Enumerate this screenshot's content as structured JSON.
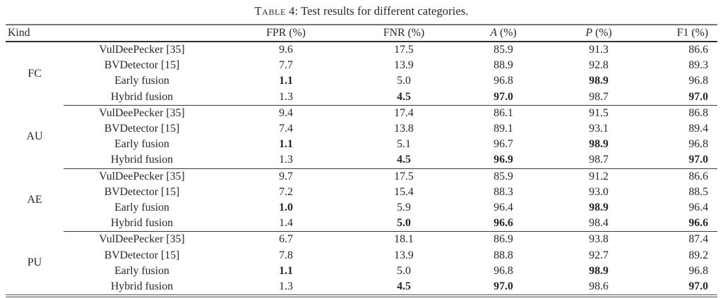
{
  "meta": {
    "background_color": "#ffffff",
    "text_color": "#262626",
    "rule_color": "#4f4f4f"
  },
  "caption": {
    "label": "Table",
    "rest": " 4: Test results for different categories."
  },
  "table": {
    "kind_header": "Kind",
    "columns": [
      {
        "name": "FPR",
        "unit": "(%)",
        "italic": false
      },
      {
        "name": "FNR",
        "unit": "(%)",
        "italic": false
      },
      {
        "name": "A",
        "unit": "(%)",
        "italic": true
      },
      {
        "name": "P",
        "unit": "(%)",
        "italic": true
      },
      {
        "name": "F1",
        "unit": "(%)",
        "italic": false
      }
    ],
    "groups": [
      {
        "kind": "FC",
        "rows": [
          {
            "method": "VulDeePecker [35]",
            "values": [
              "9.6",
              "17.5",
              "85.9",
              "91.3",
              "86.6"
            ],
            "bold": []
          },
          {
            "method": "BVDetector [15]",
            "values": [
              "7.7",
              "13.9",
              "88.9",
              "92.8",
              "89.3"
            ],
            "bold": []
          },
          {
            "method": "Early fusion",
            "values": [
              "1.1",
              "5.0",
              "96.8",
              "98.9",
              "96.8"
            ],
            "bold": [
              0,
              3
            ]
          },
          {
            "method": "Hybrid fusion",
            "values": [
              "1.3",
              "4.5",
              "97.0",
              "98.7",
              "97.0"
            ],
            "bold": [
              1,
              2,
              4
            ]
          }
        ]
      },
      {
        "kind": "AU",
        "rows": [
          {
            "method": "VulDeePecker [35]",
            "values": [
              "9.4",
              "17.4",
              "86.1",
              "91.5",
              "86.8"
            ],
            "bold": []
          },
          {
            "method": "BVDetector [15]",
            "values": [
              "7.4",
              "13.8",
              "89.1",
              "93.1",
              "89.4"
            ],
            "bold": []
          },
          {
            "method": "Early fusion",
            "values": [
              "1.1",
              "5.1",
              "96.7",
              "98.9",
              "96.8"
            ],
            "bold": [
              0,
              3
            ]
          },
          {
            "method": "Hybrid fusion",
            "values": [
              "1.3",
              "4.5",
              "96.9",
              "98.7",
              "97.0"
            ],
            "bold": [
              1,
              2,
              4
            ]
          }
        ]
      },
      {
        "kind": "AE",
        "rows": [
          {
            "method": "VulDeePecker [35]",
            "values": [
              "9.7",
              "17.5",
              "85.9",
              "91.2",
              "86.6"
            ],
            "bold": []
          },
          {
            "method": "BVDetector [15]",
            "values": [
              "7.2",
              "15.4",
              "88.3",
              "93.0",
              "88.5"
            ],
            "bold": []
          },
          {
            "method": "Early fusion",
            "values": [
              "1.0",
              "5.9",
              "96.4",
              "98.9",
              "96.4"
            ],
            "bold": [
              0,
              3
            ]
          },
          {
            "method": "Hybrid fusion",
            "values": [
              "1.4",
              "5.0",
              "96.6",
              "98.4",
              "96.6"
            ],
            "bold": [
              1,
              2,
              4
            ]
          }
        ]
      },
      {
        "kind": "PU",
        "rows": [
          {
            "method": "VulDeePecker [35]",
            "values": [
              "6.7",
              "18.1",
              "86.9",
              "93.8",
              "87.4"
            ],
            "bold": []
          },
          {
            "method": "BVDetector [15]",
            "values": [
              "7.8",
              "13.9",
              "88.8",
              "92.7",
              "89.2"
            ],
            "bold": []
          },
          {
            "method": "Early fusion",
            "values": [
              "1.1",
              "5.0",
              "96.8",
              "98.9",
              "96.8"
            ],
            "bold": [
              0,
              3
            ]
          },
          {
            "method": "Hybrid fusion",
            "values": [
              "1.3",
              "4.5",
              "97.0",
              "98.6",
              "97.0"
            ],
            "bold": [
              1,
              2,
              4
            ]
          }
        ]
      }
    ]
  }
}
